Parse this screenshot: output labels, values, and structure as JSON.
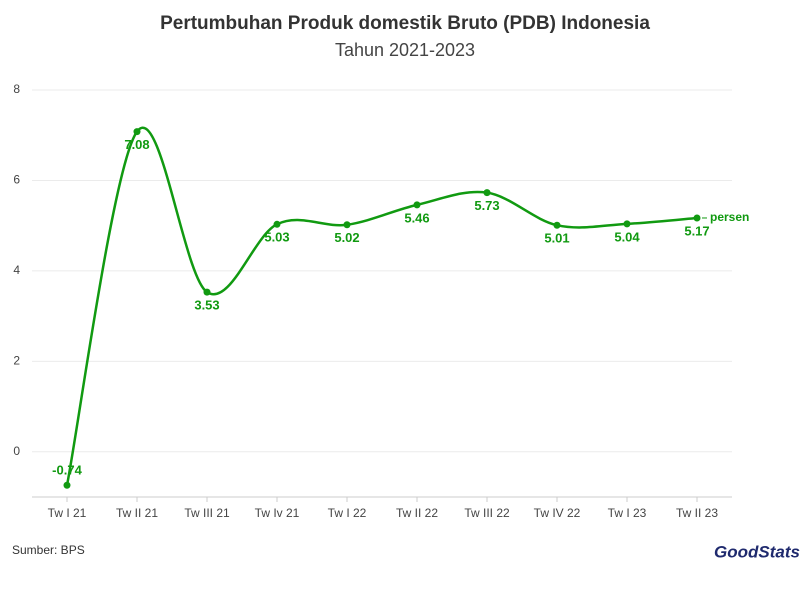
{
  "chart_data": {
    "type": "line",
    "title": "Pertumbuhan Produk domestik Bruto (PDB) Indonesia",
    "subtitle": "Tahun 2021-2023",
    "categories": [
      "Tw I 21",
      "Tw II 21",
      "Tw III 21",
      "Tw Iv 21",
      "Tw I 22",
      "Tw II 22",
      "Tw III 22",
      "Tw IV 22",
      "Tw I 23",
      "Tw II 23"
    ],
    "series": [
      {
        "name": "persen",
        "color": "#119a11",
        "values": [
          -0.74,
          7.08,
          3.53,
          5.03,
          5.02,
          5.46,
          5.73,
          5.01,
          5.04,
          5.17
        ]
      }
    ],
    "ylim": [
      -1,
      8
    ],
    "yticks": [
      0,
      2,
      4,
      6,
      8
    ],
    "grid": true,
    "smooth": true,
    "source": "Sumber: BPS",
    "logo": "GoodStats"
  }
}
